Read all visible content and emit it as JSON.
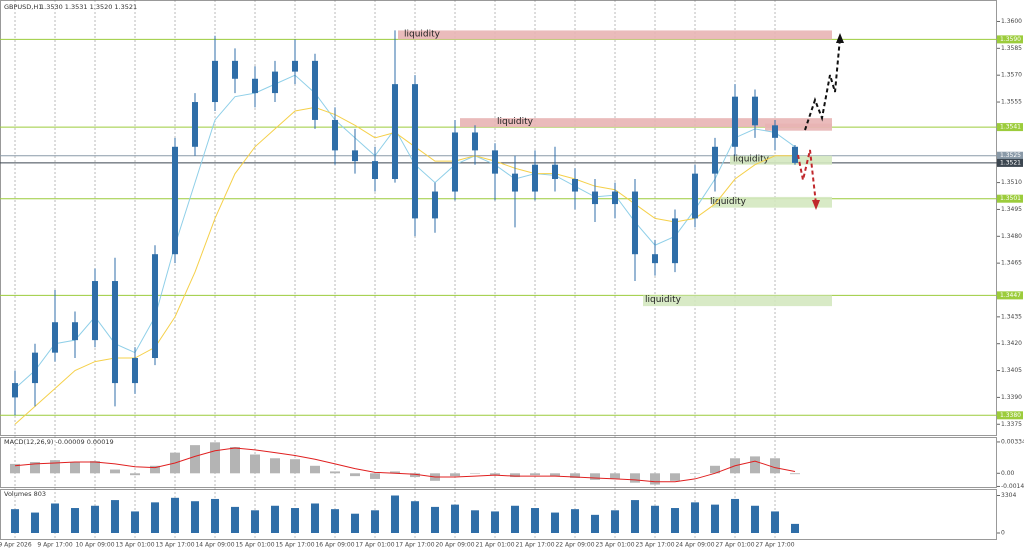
{
  "chart_data": [
    {
      "type": "candlestick",
      "title": "GBPUSD,H1",
      "subtitle": "1.3530 1.3531 1.3520 1.3521",
      "categories": [
        "9 Apr 2026",
        null,
        "9 Apr 17:00",
        null,
        "10 Apr 09:00",
        null,
        "13 Apr 01:00",
        null,
        "13 Apr 17:00",
        null,
        "14 Apr 09:00",
        null,
        "15 Apr 01:00",
        null,
        "15 Apr 17:00",
        null,
        "16 Apr 09:00",
        null,
        "17 Apr 01:00",
        null,
        "17 Apr 17:00",
        null,
        "20 Apr 09:00",
        null,
        "21 Apr 01:00",
        null,
        "21 Apr 17:00",
        null,
        "22 Apr 09:00",
        null,
        "23 Apr 01:00",
        null,
        "23 Apr 17:00",
        null,
        "24 Apr 09:00",
        null,
        "27 Apr 01:00",
        null,
        "27 Apr 17:00",
        null
      ],
      "open": [
        1.339,
        1.3398,
        1.3415,
        1.3432,
        1.3422,
        1.3455,
        1.3398,
        1.3412,
        1.347,
        1.353,
        1.3555,
        1.3578,
        1.3568,
        1.356,
        1.3572,
        1.3578,
        1.3545,
        1.3528,
        1.3522,
        1.3512,
        1.3565,
        1.349,
        1.3505,
        1.3538,
        1.3528,
        1.3515,
        1.3505,
        1.352,
        1.3512,
        1.3505,
        1.3498,
        1.3505,
        1.347,
        1.3465,
        1.349,
        1.3515,
        1.353,
        1.3558,
        1.3542,
        1.353
      ],
      "high": [
        1.3405,
        1.342,
        1.345,
        1.3438,
        1.3462,
        1.3468,
        1.3418,
        1.3475,
        1.3535,
        1.356,
        1.3592,
        1.3585,
        1.3575,
        1.3578,
        1.359,
        1.3582,
        1.3552,
        1.354,
        1.353,
        1.3595,
        1.357,
        1.351,
        1.3545,
        1.3542,
        1.3532,
        1.3525,
        1.3528,
        1.353,
        1.3518,
        1.3512,
        1.351,
        1.3512,
        1.3478,
        1.3495,
        1.352,
        1.3535,
        1.3565,
        1.3562,
        1.3545,
        1.3531
      ],
      "low": [
        1.338,
        1.3385,
        1.341,
        1.3412,
        1.3418,
        1.3385,
        1.3392,
        1.3408,
        1.3465,
        1.3525,
        1.355,
        1.356,
        1.3552,
        1.3555,
        1.3565,
        1.354,
        1.352,
        1.3515,
        1.3505,
        1.351,
        1.348,
        1.3482,
        1.35,
        1.352,
        1.35,
        1.3485,
        1.35,
        1.3505,
        1.3495,
        1.3488,
        1.349,
        1.3455,
        1.3458,
        1.346,
        1.3485,
        1.3505,
        1.3525,
        1.3535,
        1.3528,
        1.352
      ],
      "close": [
        1.3398,
        1.3415,
        1.3432,
        1.3422,
        1.3455,
        1.3398,
        1.3412,
        1.347,
        1.353,
        1.3555,
        1.3578,
        1.3568,
        1.356,
        1.3572,
        1.3578,
        1.3545,
        1.3528,
        1.3522,
        1.3512,
        1.3565,
        1.349,
        1.3505,
        1.3538,
        1.3528,
        1.3515,
        1.3505,
        1.352,
        1.3512,
        1.3505,
        1.3498,
        1.3505,
        1.347,
        1.3465,
        1.349,
        1.3515,
        1.353,
        1.3558,
        1.3542,
        1.3535,
        1.3521
      ],
      "candle_color": "#2f6ea8",
      "lines": [
        {
          "color": "#8fcfe8",
          "values": [
            1.3395,
            1.3405,
            1.342,
            1.3422,
            1.3435,
            1.342,
            1.3415,
            1.3435,
            1.3475,
            1.351,
            1.3545,
            1.3558,
            1.356,
            1.3565,
            1.357,
            1.356,
            1.3545,
            1.3535,
            1.3525,
            1.354,
            1.352,
            1.351,
            1.352,
            1.3525,
            1.352,
            1.3512,
            1.3515,
            1.3514,
            1.3508,
            1.3502,
            1.3503,
            1.3488,
            1.3475,
            1.348,
            1.3495,
            1.3512,
            1.3535,
            1.354,
            1.3538,
            1.353
          ]
        },
        {
          "color": "#f5d04a",
          "values": [
            1.3375,
            1.3385,
            1.3395,
            1.3405,
            1.341,
            1.3412,
            1.3412,
            1.3418,
            1.3435,
            1.346,
            1.349,
            1.3515,
            1.353,
            1.354,
            1.355,
            1.3552,
            1.3548,
            1.3542,
            1.3535,
            1.3538,
            1.353,
            1.3522,
            1.3522,
            1.3525,
            1.3522,
            1.3518,
            1.3515,
            1.3515,
            1.3512,
            1.3508,
            1.3506,
            1.3498,
            1.349,
            1.3488,
            1.349,
            1.3498,
            1.3512,
            1.352,
            1.3525,
            1.3525
          ]
        }
      ],
      "ylim": [
        1.3369,
        1.3612
      ],
      "yticks": [
        {
          "value": 1.36,
          "label": "1.3600"
        },
        1.3585,
        {
          "value": 1.357,
          "label": "1.3570"
        },
        1.3555,
        {
          "value": 1.351,
          "label": "1.3510"
        },
        1.3495,
        {
          "value": 1.348,
          "label": "1.3480"
        },
        1.3465,
        1.3435,
        {
          "value": 1.342,
          "label": "1.3420"
        },
        1.3405,
        {
          "value": 1.339,
          "label": "1.3390"
        },
        1.3375
      ],
      "levels": [
        {
          "value": 1.359,
          "label": "1.3590",
          "color": "#9ccc3c"
        },
        {
          "value": 1.3541,
          "label": "1.3541",
          "color": "#9ccc3c"
        },
        {
          "value": 1.3525,
          "label": "1.3525",
          "color": "#8a9aa8"
        },
        {
          "value": 1.3521,
          "label": "1.3521",
          "color": "#3c4650"
        },
        {
          "value": 1.3501,
          "label": "1.3501",
          "color": "#9ccc3c"
        },
        {
          "value": 1.3447,
          "label": "1.3447",
          "color": "#9ccc3c"
        },
        {
          "value": 1.338,
          "label": "1.3380",
          "color": "#9ccc3c"
        }
      ],
      "annotations": [
        {
          "text": "liquidity",
          "range": [
            1.359,
            1.3595
          ],
          "color": "#e8b4b4"
        },
        {
          "text": "liquidity",
          "range": [
            1.3541,
            1.3546
          ],
          "color": "#e8b4b4"
        },
        {
          "range": [
            1.3539,
            1.3543
          ],
          "color": "#e8b4b4"
        },
        {
          "text": "liquidity",
          "range": [
            1.352,
            1.3525
          ],
          "color": "#d4e8c0"
        },
        {
          "text": "liquidity",
          "range": [
            1.3496,
            1.3502
          ],
          "color": "#d4e8c0"
        },
        {
          "text": "liquidity",
          "range": [
            1.3441,
            1.3447
          ],
          "color": "#d4e8c0"
        }
      ]
    },
    {
      "type": "macd",
      "title": "MACD(12,26,9) -0.00009 0.00019",
      "histogram": [
        0.001,
        0.0012,
        0.0014,
        0.0012,
        0.0013,
        0.0004,
        -0.0002,
        0.0008,
        0.0022,
        0.003,
        0.0033,
        0.0028,
        0.002,
        0.0016,
        0.0015,
        0.0008,
        0.0002,
        -0.0003,
        -0.0006,
        0.0002,
        -0.0004,
        -0.0008,
        -0.0003,
        0.0,
        -0.0002,
        -0.0004,
        -0.0002,
        -0.0003,
        -0.0005,
        -0.0007,
        -0.0006,
        -0.001,
        -0.0012,
        -0.0008,
        0.0,
        0.0008,
        0.0016,
        0.0018,
        0.0016,
        -9e-05
      ],
      "signal": [
        0.0008,
        0.001,
        0.0011,
        0.0012,
        0.0012,
        0.001,
        0.0007,
        0.0006,
        0.0011,
        0.0018,
        0.0024,
        0.0027,
        0.0025,
        0.0022,
        0.0019,
        0.0015,
        0.001,
        0.0005,
        0.0001,
        0.0,
        -0.0001,
        -0.0004,
        -0.0004,
        -0.0003,
        -0.0002,
        -0.0003,
        -0.0003,
        -0.0003,
        -0.0004,
        -0.0005,
        -0.0006,
        -0.0007,
        -0.0009,
        -0.0009,
        -0.0006,
        0.0,
        0.0008,
        0.0013,
        0.0006,
        0.00019
      ],
      "histogram_color": "#b4b4b4",
      "signal_color": "#e02020",
      "ylim": [
        -0.00146,
        0.00376
      ],
      "yticks": [
        0.00334,
        {
          "value": 0,
          "label": "0.00"
        },
        -0.0014
      ]
    },
    {
      "type": "bar",
      "title": "Volumes 803",
      "values": [
        2100,
        1800,
        2600,
        2200,
        2400,
        2900,
        1900,
        2700,
        3100,
        2800,
        3000,
        2300,
        2000,
        2400,
        2200,
        2600,
        2100,
        1700,
        2000,
        3304,
        2800,
        2300,
        2500,
        2000,
        1900,
        2400,
        2200,
        1800,
        2100,
        1600,
        2000,
        2900,
        2400,
        2200,
        2700,
        2500,
        3000,
        2400,
        1900,
        803
      ],
      "color": "#2f6ea8",
      "ylim": [
        0,
        3700
      ],
      "yticks": [
        3304,
        0
      ]
    }
  ]
}
